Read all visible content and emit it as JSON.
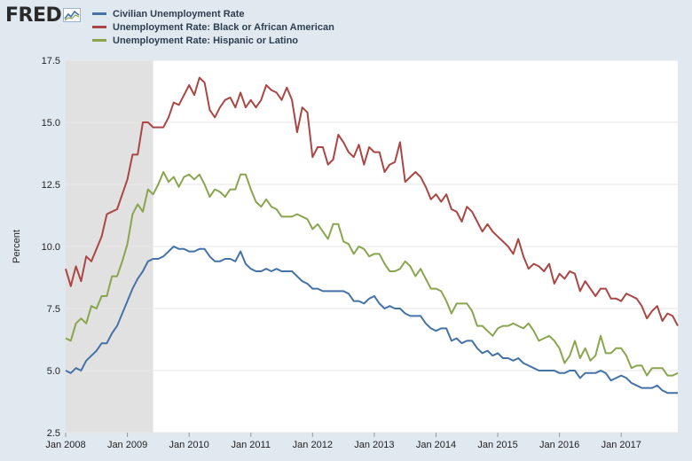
{
  "branding": {
    "logo_text": "FRED",
    "logo_icon": "trend-line-icon"
  },
  "chart_data": {
    "type": "line",
    "title": "",
    "xlabel": "",
    "ylabel": "Percent",
    "ylim": [
      2.5,
      17.5
    ],
    "yticks": [
      "2.5",
      "5.0",
      "7.5",
      "10.0",
      "12.5",
      "15.0",
      "17.5"
    ],
    "xlim": [
      2008.0,
      2017.9167
    ],
    "xticks": [
      {
        "value": 2008,
        "label": "Jan 2008"
      },
      {
        "value": 2009,
        "label": "Jan 2009"
      },
      {
        "value": 2010,
        "label": "Jan 2010"
      },
      {
        "value": 2011,
        "label": "Jan 2011"
      },
      {
        "value": 2012,
        "label": "Jan 2012"
      },
      {
        "value": 2013,
        "label": "Jan 2013"
      },
      {
        "value": 2014,
        "label": "Jan 2014"
      },
      {
        "value": 2015,
        "label": "Jan 2015"
      },
      {
        "value": 2016,
        "label": "Jan 2016"
      },
      {
        "value": 2017,
        "label": "Jan 2017"
      }
    ],
    "grid": true,
    "recession": {
      "start": 2008.0,
      "end": 2009.4167,
      "color": "#e1e1e1"
    },
    "x_start": 2008.0,
    "x_step": 0.083333,
    "series": [
      {
        "name": "Civilian Unemployment Rate",
        "color": "#4572a7",
        "values": [
          5.0,
          4.9,
          5.1,
          5.0,
          5.4,
          5.6,
          5.8,
          6.1,
          6.1,
          6.5,
          6.8,
          7.3,
          7.8,
          8.3,
          8.7,
          9.0,
          9.4,
          9.5,
          9.5,
          9.6,
          9.8,
          10.0,
          9.9,
          9.9,
          9.8,
          9.8,
          9.9,
          9.9,
          9.6,
          9.4,
          9.4,
          9.5,
          9.5,
          9.4,
          9.8,
          9.3,
          9.1,
          9.0,
          9.0,
          9.1,
          9.0,
          9.1,
          9.0,
          9.0,
          9.0,
          8.8,
          8.6,
          8.5,
          8.3,
          8.3,
          8.2,
          8.2,
          8.2,
          8.2,
          8.2,
          8.1,
          7.8,
          7.8,
          7.7,
          7.9,
          8.0,
          7.7,
          7.5,
          7.6,
          7.5,
          7.5,
          7.3,
          7.2,
          7.2,
          7.2,
          6.9,
          6.7,
          6.6,
          6.7,
          6.7,
          6.2,
          6.3,
          6.1,
          6.2,
          6.2,
          5.9,
          5.7,
          5.8,
          5.6,
          5.7,
          5.5,
          5.5,
          5.4,
          5.5,
          5.3,
          5.2,
          5.1,
          5.0,
          5.0,
          5.0,
          5.0,
          4.9,
          4.9,
          5.0,
          5.0,
          4.7,
          4.9,
          4.9,
          4.9,
          5.0,
          4.9,
          4.6,
          4.7,
          4.8,
          4.7,
          4.5,
          4.4,
          4.3,
          4.3,
          4.3,
          4.4,
          4.2,
          4.1,
          4.1,
          4.1
        ]
      },
      {
        "name": "Unemployment Rate: Black or African American",
        "color": "#aa4643",
        "values": [
          9.1,
          8.4,
          9.2,
          8.6,
          9.6,
          9.4,
          9.9,
          10.4,
          11.3,
          11.4,
          11.5,
          12.1,
          12.7,
          13.7,
          13.7,
          15.0,
          15.0,
          14.8,
          14.8,
          14.8,
          15.2,
          15.8,
          15.7,
          16.1,
          16.5,
          16.1,
          16.8,
          16.6,
          15.5,
          15.2,
          15.6,
          15.9,
          16.0,
          15.6,
          16.2,
          15.6,
          15.9,
          15.6,
          15.9,
          16.5,
          16.3,
          16.2,
          15.9,
          16.4,
          15.9,
          14.6,
          15.6,
          15.4,
          13.6,
          14.0,
          14.0,
          13.3,
          13.5,
          14.5,
          14.2,
          13.8,
          13.6,
          14.1,
          13.3,
          14.0,
          13.8,
          13.8,
          13.0,
          13.3,
          13.4,
          14.2,
          12.6,
          12.8,
          13.0,
          12.8,
          12.4,
          11.9,
          12.1,
          11.8,
          12.1,
          11.5,
          11.4,
          11.0,
          11.6,
          11.4,
          11.0,
          10.6,
          10.9,
          10.6,
          10.4,
          10.2,
          10.0,
          9.7,
          10.3,
          9.6,
          9.1,
          9.3,
          9.2,
          9.0,
          9.3,
          8.5,
          8.9,
          8.7,
          9.0,
          8.9,
          8.2,
          8.6,
          8.3,
          8.0,
          8.3,
          8.3,
          7.9,
          7.9,
          7.8,
          8.1,
          8.0,
          7.9,
          7.6,
          7.1,
          7.4,
          7.6,
          7.0,
          7.3,
          7.2,
          6.8
        ]
      },
      {
        "name": "Unemployment Rate: Hispanic or Latino",
        "color": "#89a54e",
        "values": [
          6.3,
          6.2,
          6.9,
          7.1,
          6.9,
          7.6,
          7.5,
          8.0,
          8.0,
          8.8,
          8.8,
          9.4,
          10.1,
          11.3,
          11.7,
          11.4,
          12.3,
          12.1,
          12.5,
          13.0,
          12.6,
          12.8,
          12.4,
          12.8,
          12.9,
          12.7,
          12.9,
          12.5,
          12.0,
          12.3,
          12.2,
          12.0,
          12.3,
          12.3,
          12.9,
          12.9,
          12.3,
          11.8,
          11.6,
          11.9,
          11.6,
          11.5,
          11.2,
          11.2,
          11.2,
          11.3,
          11.2,
          11.1,
          10.7,
          10.9,
          10.6,
          10.3,
          10.9,
          10.9,
          10.2,
          10.1,
          9.7,
          10.0,
          9.9,
          9.6,
          9.7,
          9.7,
          9.3,
          9.0,
          9.0,
          9.1,
          9.4,
          9.2,
          8.8,
          9.1,
          8.7,
          8.3,
          8.3,
          8.2,
          7.8,
          7.3,
          7.7,
          7.7,
          7.7,
          7.4,
          6.8,
          6.8,
          6.6,
          6.4,
          6.7,
          6.8,
          6.8,
          6.9,
          6.8,
          6.7,
          6.9,
          6.6,
          6.2,
          6.3,
          6.4,
          6.2,
          5.9,
          5.3,
          5.6,
          6.2,
          5.5,
          5.9,
          5.4,
          5.6,
          6.4,
          5.7,
          5.7,
          5.9,
          5.9,
          5.6,
          5.1,
          5.2,
          5.2,
          4.8,
          5.1,
          5.1,
          5.1,
          4.8,
          4.8,
          4.9
        ]
      }
    ]
  }
}
